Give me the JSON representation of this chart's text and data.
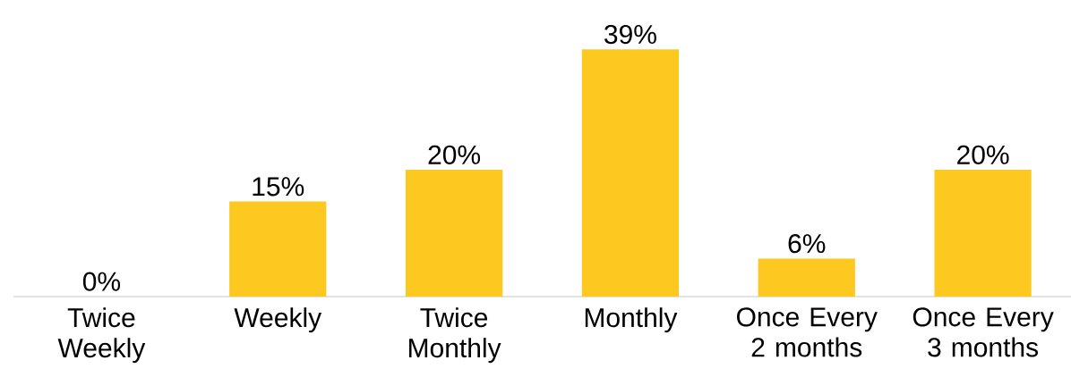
{
  "chart_data": {
    "type": "bar",
    "categories": [
      "Twice Weekly",
      "Weekly",
      "Twice Monthly",
      "Monthly",
      "Once Every 2 months",
      "Once Every 3 months"
    ],
    "values": [
      0,
      15,
      20,
      39,
      6,
      20
    ],
    "value_labels": [
      "0%",
      "15%",
      "20%",
      "39%",
      "6%",
      "20%"
    ],
    "color": "#fdc921"
  }
}
